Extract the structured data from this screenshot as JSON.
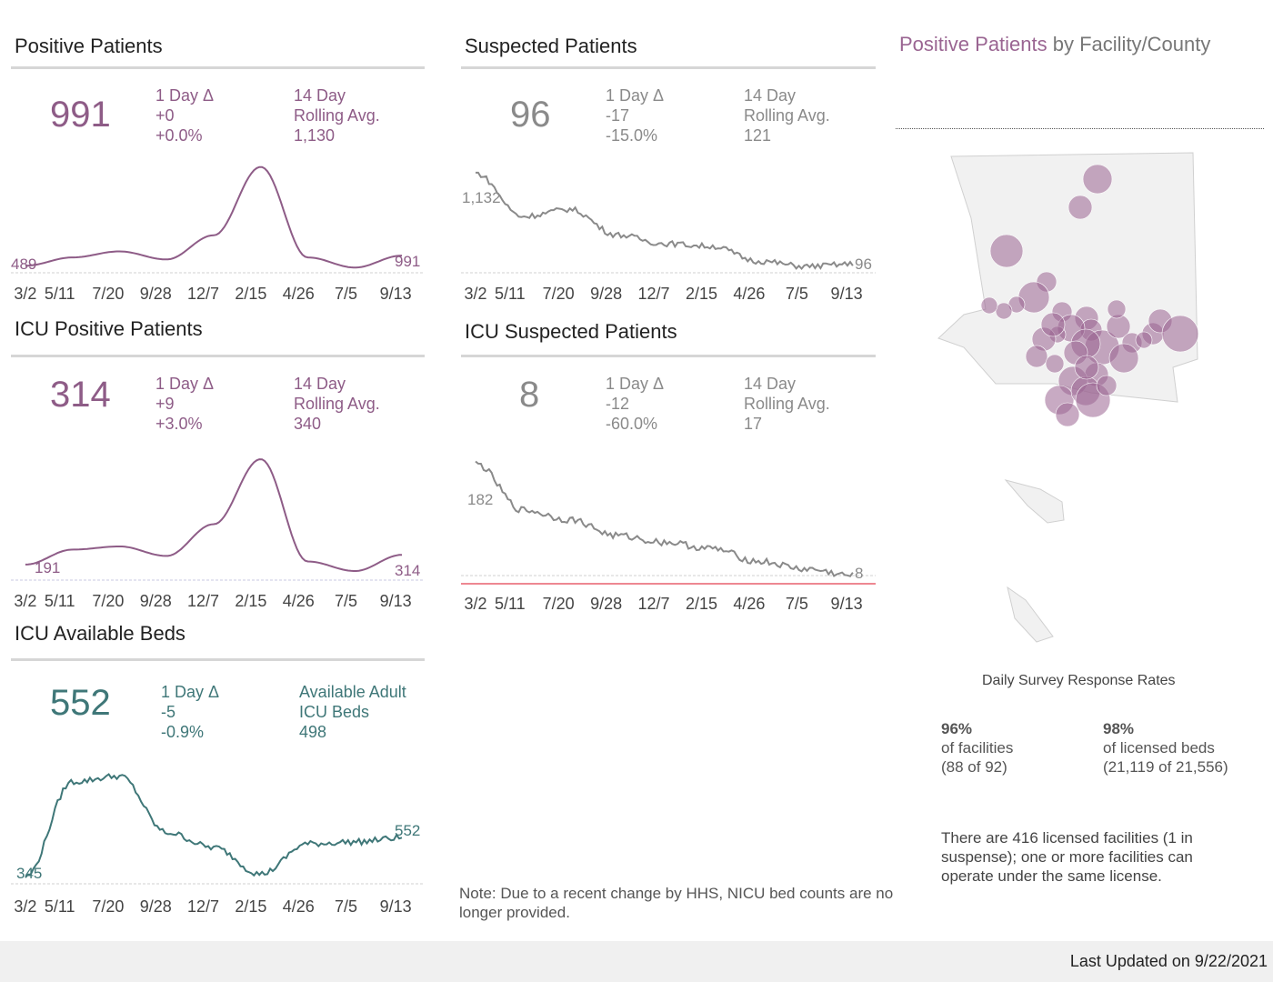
{
  "panels": {
    "positive": {
      "title": "Positive Patients",
      "value": "991",
      "delta_label": "1 Day Δ",
      "delta_abs": "+0",
      "delta_pct": "+0.0%",
      "avg_label1": "14 Day",
      "avg_label2": "Rolling Avg.",
      "avg_value": "1,130",
      "start_label": "489",
      "end_label": "991"
    },
    "suspected": {
      "title": "Suspected Patients",
      "value": "96",
      "delta_label": "1 Day Δ",
      "delta_abs": "-17",
      "delta_pct": "-15.0%",
      "avg_label1": "14 Day",
      "avg_label2": "Rolling Avg.",
      "avg_value": "121",
      "start_label": "1,132",
      "end_label": "96"
    },
    "icu_positive": {
      "title": "ICU Positive Patients",
      "value": "314",
      "delta_label": "1 Day Δ",
      "delta_abs": "+9",
      "delta_pct": "+3.0%",
      "avg_label1": "14 Day",
      "avg_label2": "Rolling Avg.",
      "avg_value": "340",
      "start_label": "191",
      "end_label": "314"
    },
    "icu_suspected": {
      "title": "ICU Suspected Patients",
      "value": "8",
      "delta_label": "1 Day Δ",
      "delta_abs": "-12",
      "delta_pct": "-60.0%",
      "avg_label1": "14 Day",
      "avg_label2": "Rolling Avg.",
      "avg_value": "17",
      "start_label": "182",
      "end_label": "8"
    },
    "icu_beds": {
      "title": "ICU Available Beds",
      "value": "552",
      "delta_label": "1 Day Δ",
      "delta_abs": "-5",
      "delta_pct": "-0.9%",
      "avg_label1": "Available Adult",
      "avg_label2": "ICU Beds",
      "avg_value": "498",
      "start_label": "345",
      "end_label": "552"
    }
  },
  "x_ticks": [
    "3/2",
    "5/11",
    "7/20",
    "9/28",
    "12/7",
    "2/15",
    "4/26",
    "7/5",
    "9/13"
  ],
  "map": {
    "title_highlight": "Positive Patients",
    "title_rest": " by Facility/County"
  },
  "survey": {
    "title": "Daily Survey Response Rates",
    "facilities_pct": "96%",
    "facilities_label": "of facilities",
    "facilities_count": "(88 of 92)",
    "beds_pct": "98%",
    "beds_label": "of licensed beds",
    "beds_count": "(21,119 of 21,556)"
  },
  "info_text": "There are 416 licensed facilities (1 in suspense); one or more facilities can operate under the same license.",
  "note_text": "Note: Due to a recent change by HHS, NICU bed counts are no longer provided.",
  "footer": "Last Updated on 9/22/2021",
  "colors": {
    "positive": "#8e5c87",
    "suspected": "#8a8a8a",
    "beds": "#3f7778",
    "bubble": "#9a6592"
  },
  "chart_data": [
    {
      "type": "line",
      "title": "Positive Patients",
      "x": [
        "3/2",
        "5/11",
        "7/20",
        "9/28",
        "12/7",
        "2/15",
        "4/26",
        "7/5",
        "9/13"
      ],
      "series": [
        {
          "values": [
            489,
            900,
            1200,
            800,
            2000,
            5400,
            900,
            400,
            991
          ]
        }
      ]
    },
    {
      "type": "line",
      "title": "Suspected Patients",
      "x": [
        "3/2",
        "5/11",
        "7/20",
        "9/28",
        "12/7",
        "2/15",
        "4/26",
        "7/5",
        "9/13"
      ],
      "series": [
        {
          "values": [
            1132,
            640,
            720,
            430,
            330,
            300,
            130,
            70,
            96
          ]
        }
      ]
    },
    {
      "type": "line",
      "title": "ICU Positive Patients",
      "x": [
        "3/2",
        "5/11",
        "7/20",
        "9/28",
        "12/7",
        "2/15",
        "4/26",
        "7/5",
        "9/13"
      ],
      "series": [
        {
          "values": [
            191,
            380,
            420,
            300,
            700,
            1520,
            230,
            110,
            314
          ]
        }
      ]
    },
    {
      "type": "line",
      "title": "ICU Suspected Patients",
      "x": [
        "3/2",
        "5/11",
        "7/20",
        "9/28",
        "12/7",
        "2/15",
        "4/26",
        "7/5",
        "9/13"
      ],
      "series": [
        {
          "values": [
            182,
            110,
            95,
            70,
            60,
            50,
            30,
            18,
            8
          ]
        }
      ]
    },
    {
      "type": "line",
      "title": "ICU Available Beds",
      "x": [
        "3/2",
        "5/11",
        "7/20",
        "9/28",
        "12/7",
        "2/15",
        "4/26",
        "7/5",
        "9/13"
      ],
      "series": [
        {
          "values": [
            345,
            850,
            880,
            580,
            500,
            360,
            520,
            530,
            552
          ]
        }
      ]
    }
  ]
}
